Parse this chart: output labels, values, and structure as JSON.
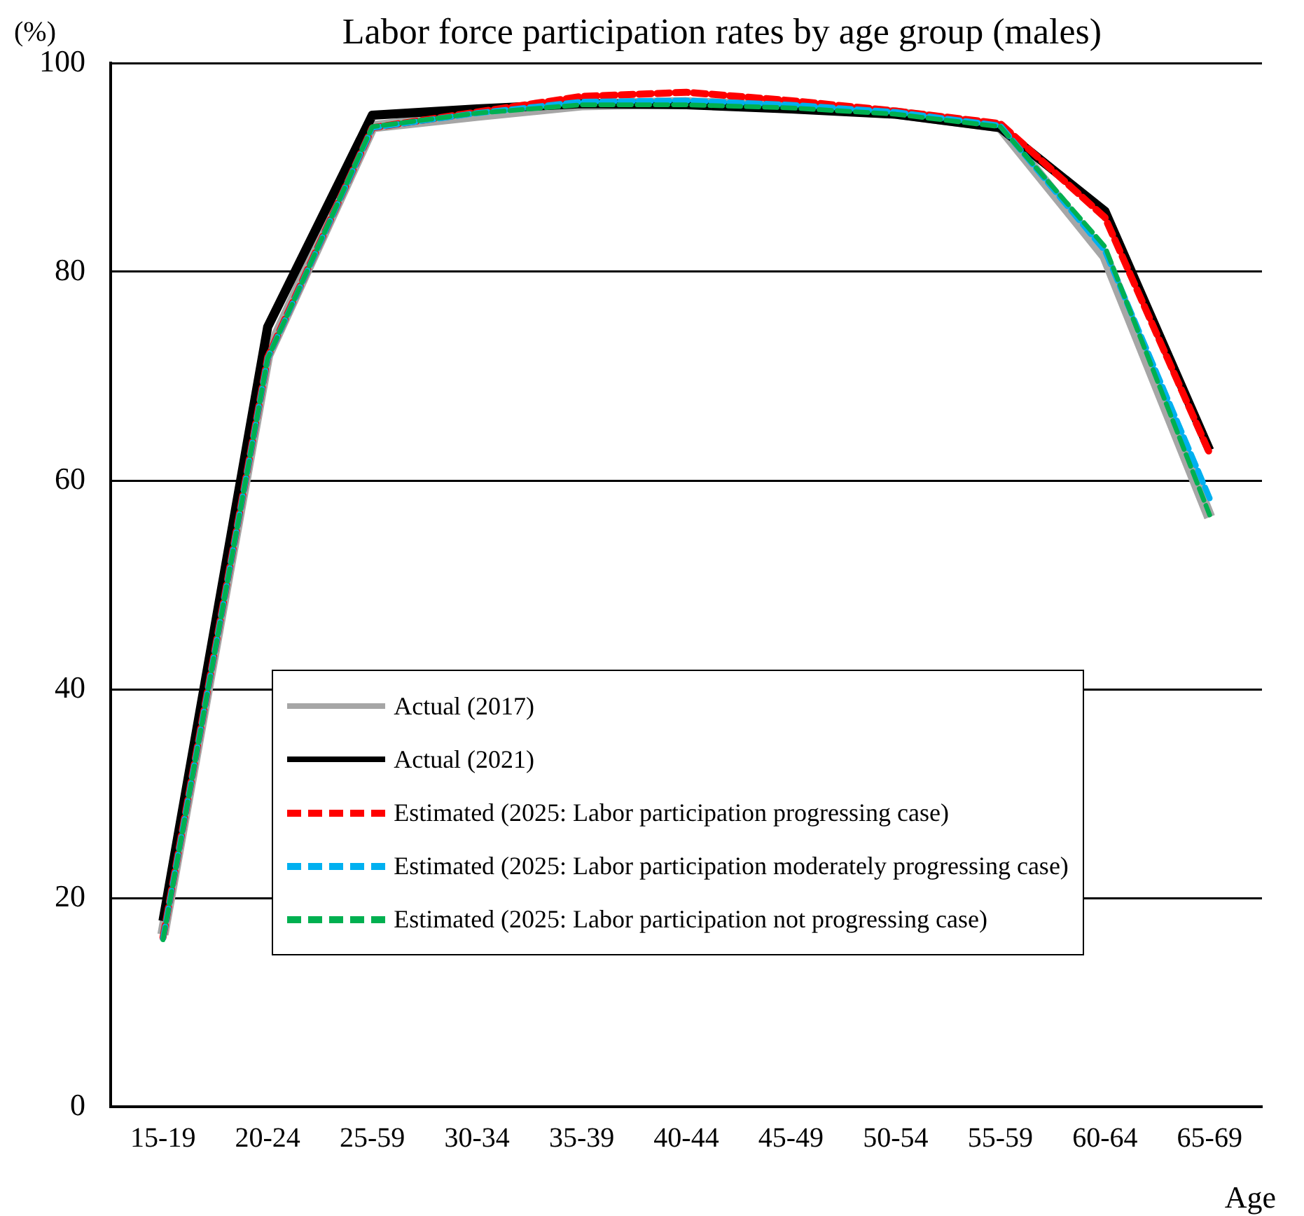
{
  "chart_data": {
    "type": "line",
    "title": "Labor force participation rates by age group (males)",
    "ylabel": "(%)",
    "xlabel": "Age",
    "categories": [
      "15-19",
      "20-24",
      "25-59",
      "30-34",
      "35-39",
      "40-44",
      "45-49",
      "50-54",
      "55-59",
      "60-64",
      "65-69"
    ],
    "ylim": [
      0,
      100
    ],
    "yticks": [
      0,
      20,
      40,
      60,
      80,
      100
    ],
    "grid": "y",
    "legend": "bottom",
    "marker": "none",
    "series": [
      {
        "name": "Actual (2017)",
        "color": "#a6a6a6",
        "line_style": "solid",
        "values": [
          16.5,
          72.0,
          93.9,
          95.0,
          96.0,
          96.2,
          95.8,
          95.2,
          93.9,
          81.5,
          56.5
        ]
      },
      {
        "name": "Actual (2021)",
        "color": "#000000",
        "line_style": "solid",
        "values": [
          17.8,
          74.7,
          95.0,
          95.6,
          96.1,
          96.0,
          95.6,
          95.1,
          93.8,
          85.8,
          62.9
        ]
      },
      {
        "name": "Estimated (2025: Labor participation progressing case)",
        "color": "#ff0000",
        "line_style": "dashed",
        "values": [
          16.2,
          71.8,
          93.8,
          95.3,
          96.8,
          97.2,
          96.4,
          95.4,
          94.2,
          85.2,
          62.6
        ]
      },
      {
        "name": "Estimated (2025: Labor participation moderately progressing case)",
        "color": "#00b0f0",
        "line_style": "dashed",
        "values": [
          16.1,
          71.7,
          93.8,
          95.2,
          96.3,
          96.4,
          96.0,
          95.3,
          94.0,
          82.0,
          58.3
        ]
      },
      {
        "name": "Estimated (2025: Labor participation not progressing case)",
        "color": "#00b050",
        "line_style": "dashed",
        "values": [
          16.0,
          71.7,
          93.9,
          95.2,
          96.0,
          96.0,
          95.7,
          95.1,
          93.9,
          82.4,
          56.7
        ]
      }
    ]
  }
}
